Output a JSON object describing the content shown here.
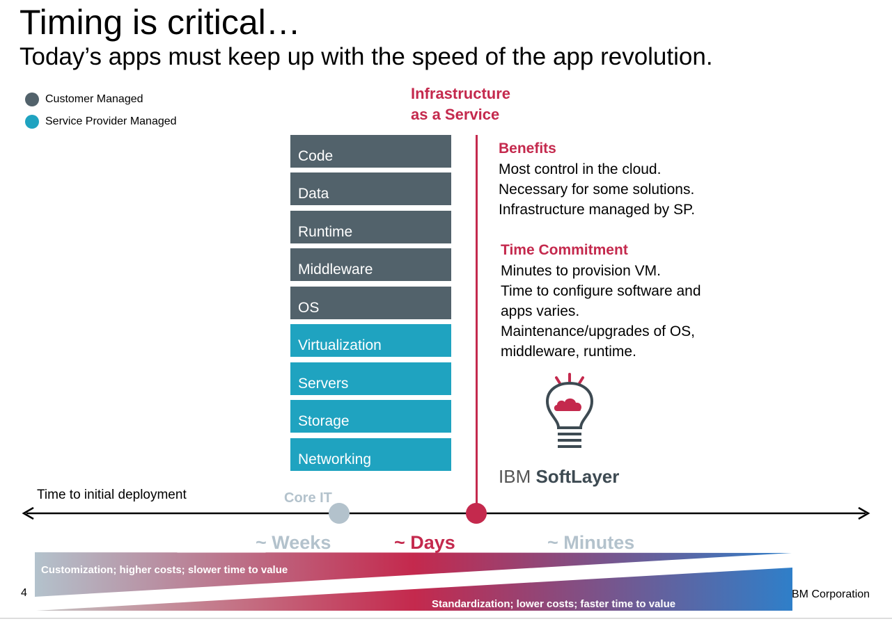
{
  "slide": {
    "title": "Timing is critical…",
    "subtitle": "Today’s apps must keep up with the speed of the app revolution.",
    "page_number": "4",
    "footer": "BM Corporation"
  },
  "legend": [
    {
      "label": "Customer Managed",
      "color": "#52626b"
    },
    {
      "label": "Service Provider Managed",
      "color": "#1fa3c0"
    }
  ],
  "iaas": {
    "title_line1": "Infrastructure",
    "title_line2": "as a Service"
  },
  "stack": [
    {
      "label": "Code",
      "managed": "customer"
    },
    {
      "label": "Data",
      "managed": "customer"
    },
    {
      "label": "Runtime",
      "managed": "customer"
    },
    {
      "label": "Middleware",
      "managed": "customer"
    },
    {
      "label": "OS",
      "managed": "customer"
    },
    {
      "label": "Virtualization",
      "managed": "provider"
    },
    {
      "label": "Servers",
      "managed": "provider"
    },
    {
      "label": "Storage",
      "managed": "provider"
    },
    {
      "label": "Networking",
      "managed": "provider"
    }
  ],
  "benefits": {
    "heading": "Benefits",
    "lines": [
      "Most control in the cloud.",
      "Necessary for some solutions.",
      "Infrastructure managed by SP."
    ]
  },
  "time_commitment": {
    "heading": "Time Commitment",
    "lines": [
      "Minutes to provision VM.",
      "Time to configure software and",
      "apps varies.",
      "Maintenance/upgrades of OS,",
      "middleware, runtime."
    ]
  },
  "brand": {
    "prefix": "IBM",
    "name": "SoftLayer",
    "icon": "lightbulb-cloud-icon"
  },
  "timeline": {
    "label": "Time to initial deployment",
    "core_it": "Core IT",
    "weeks": "~ Weeks",
    "days": "~ Days",
    "minutes": "~ Minutes"
  },
  "wedges": {
    "top": "Customization; higher costs; slower time to value",
    "bottom": "Standardization; lower costs; faster time to value"
  },
  "colors": {
    "accent": "#c4294d",
    "customer": "#52626b",
    "provider": "#1fa3c0",
    "muted": "#b3c2cc",
    "blue": "#2f7fc9"
  }
}
